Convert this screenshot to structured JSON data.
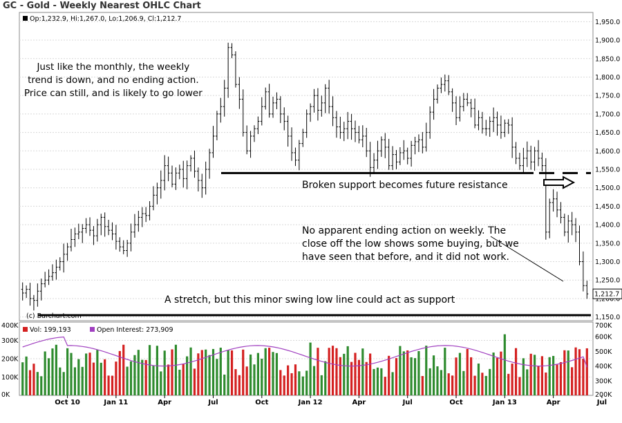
{
  "chart_data": {
    "type": "ohlc",
    "title": "GC - Gold - Weekly Nearest OHLC Chart",
    "info_line": "Op:1,232.9, Hi:1,267.0, Lo:1,206.9, Cl:1,212.7",
    "credit": "(c) Barchart.com",
    "last_price_label": "1,212.7",
    "last_price": 1212.7,
    "price_ylim": [
      1140,
      1975
    ],
    "price_ticks": [
      {
        "v": 1150,
        "label": "1,150.0"
      },
      {
        "v": 1200,
        "label": "1,200.0"
      },
      {
        "v": 1250,
        "label": "1,250.0"
      },
      {
        "v": 1300,
        "label": "1,300.0"
      },
      {
        "v": 1350,
        "label": "1,350.0"
      },
      {
        "v": 1400,
        "label": "1,400.0"
      },
      {
        "v": 1450,
        "label": "1,450.0"
      },
      {
        "v": 1500,
        "label": "1,500.0"
      },
      {
        "v": 1550,
        "label": "1,550.0"
      },
      {
        "v": 1600,
        "label": "1,600.0"
      },
      {
        "v": 1650,
        "label": "1,650.0"
      },
      {
        "v": 1700,
        "label": "1,700.0"
      },
      {
        "v": 1750,
        "label": "1,750.0"
      },
      {
        "v": 1800,
        "label": "1,800.0"
      },
      {
        "v": 1850,
        "label": "1,850.0"
      },
      {
        "v": 1900,
        "label": "1,900.0"
      },
      {
        "v": 1950,
        "label": "1,950.0"
      }
    ],
    "x_ticks": [
      {
        "label": "Oct 10",
        "bar": 12
      },
      {
        "label": "Jan 11",
        "bar": 25
      },
      {
        "label": "Apr",
        "bar": 38
      },
      {
        "label": "Jul",
        "bar": 51
      },
      {
        "label": "Oct",
        "bar": 64
      },
      {
        "label": "Jan 12",
        "bar": 77
      },
      {
        "label": "Apr",
        "bar": 90
      },
      {
        "label": "Jul",
        "bar": 103
      },
      {
        "label": "Oct",
        "bar": 116
      },
      {
        "label": "Jan 13",
        "bar": 129
      },
      {
        "label": "Apr",
        "bar": 142
      },
      {
        "label": "Jul",
        "bar": 155
      }
    ],
    "weekly_close": [
      1215,
      1225,
      1200,
      1195,
      1220,
      1240,
      1250,
      1260,
      1270,
      1285,
      1300,
      1320,
      1340,
      1360,
      1375,
      1380,
      1390,
      1400,
      1385,
      1370,
      1400,
      1420,
      1395,
      1385,
      1375,
      1355,
      1340,
      1330,
      1350,
      1380,
      1400,
      1420,
      1430,
      1425,
      1450,
      1480,
      1500,
      1520,
      1560,
      1540,
      1510,
      1540,
      1550,
      1525,
      1560,
      1580,
      1545,
      1520,
      1500,
      1550,
      1595,
      1640,
      1700,
      1720,
      1770,
      1880,
      1860,
      1780,
      1740,
      1650,
      1600,
      1640,
      1660,
      1680,
      1720,
      1760,
      1700,
      1730,
      1740,
      1700,
      1680,
      1640,
      1595,
      1575,
      1620,
      1650,
      1700,
      1720,
      1750,
      1710,
      1730,
      1770,
      1720,
      1690,
      1665,
      1650,
      1660,
      1680,
      1660,
      1650,
      1630,
      1640,
      1600,
      1555,
      1575,
      1600,
      1630,
      1610,
      1560,
      1590,
      1570,
      1595,
      1600,
      1580,
      1615,
      1625,
      1630,
      1610,
      1650,
      1705,
      1740,
      1770,
      1780,
      1790,
      1760,
      1730,
      1690,
      1720,
      1740,
      1730,
      1715,
      1670,
      1690,
      1660,
      1660,
      1680,
      1690,
      1670,
      1650,
      1675,
      1670,
      1610,
      1580,
      1560,
      1580,
      1600,
      1570,
      1600,
      1580,
      1560,
      1380,
      1460,
      1470,
      1440,
      1420,
      1380,
      1410,
      1400,
      1380,
      1300,
      1235,
      1212.7
    ],
    "volume_ylim": [
      0,
      400
    ],
    "volume_ticks": [
      {
        "v": 0,
        "label": "0K"
      },
      {
        "v": 100,
        "label": "100K"
      },
      {
        "v": 200,
        "label": "200K"
      },
      {
        "v": 300,
        "label": "300K"
      },
      {
        "v": 400,
        "label": "400K"
      }
    ],
    "oi_ylim": [
      200,
      700
    ],
    "oi_ticks": [
      {
        "v": 200,
        "label": "200K"
      },
      {
        "v": 300,
        "label": "300K"
      },
      {
        "v": 400,
        "label": "400K"
      },
      {
        "v": 500,
        "label": "500K"
      },
      {
        "v": 600,
        "label": "600K"
      },
      {
        "v": 700,
        "label": "700K"
      }
    ],
    "volume_legend": "Vol: 199,193",
    "oi_legend": "Open Interest: 273,909",
    "volume_colors": {
      "up": "#2e8b2e",
      "down": "#d42020"
    },
    "oi_color": "#a040c0",
    "price_bar_color": "#000000",
    "support_level": 1540,
    "swing_low_level": 1155,
    "annotations": {
      "trend": [
        "Just like the monthly, the weekly",
        "trend is down, and no ending action.",
        "Price can still, and is likely to go lower"
      ],
      "resist": "Broken support becomes future resistance",
      "ending": [
        "No apparent ending action on weekly.  The",
        "close off the low shows some buying, but we",
        "have seen that before, and it did not work."
      ],
      "stretch": "A stretch, but this minor swing low line could act as support"
    }
  }
}
